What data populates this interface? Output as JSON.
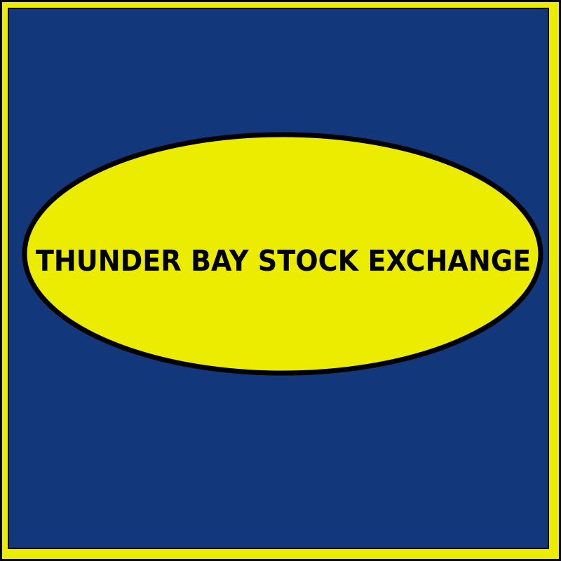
{
  "logo": {
    "name": "THUNDER BAY STOCK EXCHANGE"
  },
  "colors": {
    "background_blue": "#12377a",
    "ellipse_yellow": "#ecec00",
    "frame_yellow": "#ecec00",
    "outline_black": "#000000"
  }
}
